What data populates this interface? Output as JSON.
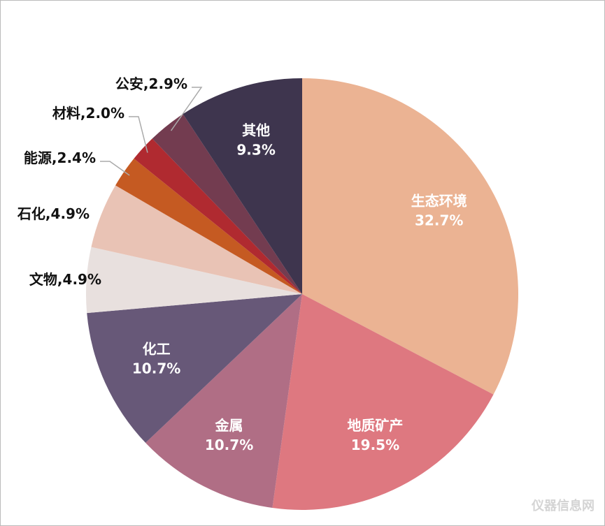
{
  "chart_data": {
    "type": "pie",
    "categories": [
      "生态环境",
      "地质矿产",
      "金属",
      "化工",
      "文物",
      "石化",
      "能源",
      "材料",
      "公安",
      "其他"
    ],
    "values": [
      32.7,
      19.5,
      10.7,
      10.7,
      4.9,
      4.9,
      2.4,
      2.0,
      2.9,
      9.3
    ],
    "value_labels": [
      "32.7%",
      "19.5%",
      "10.7%",
      "10.7%",
      "4.9%",
      "4.9%",
      "2.4%",
      "2.0%",
      "2.9%",
      "9.3%"
    ],
    "colors": [
      "#EBB393",
      "#DE7880",
      "#B06E85",
      "#675878",
      "#E8E0DE",
      "#E9C3B5",
      "#C55A22",
      "#B02A30",
      "#733C50",
      "#3E354E"
    ],
    "label_separator": ",",
    "watermark": "仪器信息网"
  }
}
